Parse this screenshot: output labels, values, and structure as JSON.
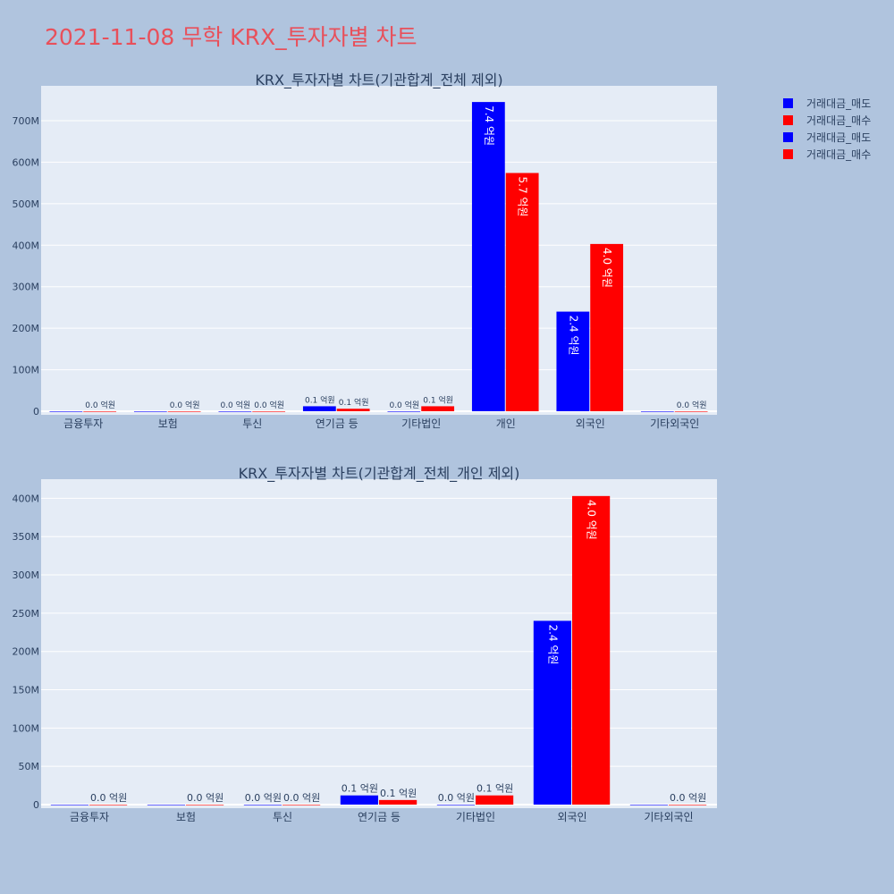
{
  "page": {
    "title": "2021-11-08 무학 KRX_투자자별 차트"
  },
  "legend": [
    {
      "name": "거래대금_매도",
      "color": "#0000ff"
    },
    {
      "name": "거래대금_매수",
      "color": "#ff0000"
    },
    {
      "name": "거래대금_매도",
      "color": "#0000ff"
    },
    {
      "name": "거래대금_매수",
      "color": "#ff0000"
    }
  ],
  "chart_data": [
    {
      "type": "bar",
      "title": "KRX_투자자별 차트(기관합계_전체 제외)",
      "categories": [
        "금융투자",
        "보험",
        "투신",
        "연기금 등",
        "기타법인",
        "개인",
        "외국인",
        "기타외국인"
      ],
      "series": [
        {
          "name": "거래대금_매도",
          "color": "#0000ff",
          "values": [
            0,
            0,
            0,
            12000000,
            0,
            745000000,
            240000000,
            0
          ],
          "labels": [
            "",
            "",
            "0.0 억원",
            "0.1 억원",
            "0.0 억원",
            "7.4 억원",
            "2.4 억원",
            ""
          ]
        },
        {
          "name": "거래대금_매수",
          "color": "#ff0000",
          "values": [
            0,
            0,
            0,
            6000000,
            12000000,
            574000000,
            403000000,
            0
          ],
          "labels": [
            "0.0 억원",
            "0.0 억원",
            "0.0 억원",
            "0.1 억원",
            "0.1 억원",
            "5.7 억원",
            "4.0 억원",
            "0.0 억원"
          ]
        }
      ],
      "yticks": [
        0,
        100000000,
        200000000,
        300000000,
        400000000,
        500000000,
        600000000,
        700000000
      ],
      "ytick_labels": [
        "0",
        "100M",
        "200M",
        "300M",
        "400M",
        "500M",
        "600M",
        "700M"
      ],
      "ylim": [
        0,
        784000000
      ],
      "grid": true
    },
    {
      "type": "bar",
      "title": "KRX_투자자별 차트(기관합계_전체_개인 제외)",
      "categories": [
        "금융투자",
        "보험",
        "투신",
        "연기금 등",
        "기타법인",
        "외국인",
        "기타외국인"
      ],
      "series": [
        {
          "name": "거래대금_매도",
          "color": "#0000ff",
          "values": [
            0,
            0,
            0,
            12000000,
            0,
            240000000,
            0
          ],
          "labels": [
            "",
            "",
            "0.0 억원",
            "0.1 억원",
            "0.0 억원",
            "2.4 억원",
            ""
          ]
        },
        {
          "name": "거래대금_매수",
          "color": "#ff0000",
          "values": [
            0,
            0,
            0,
            6000000,
            12000000,
            403000000,
            0
          ],
          "labels": [
            "0.0 억원",
            "0.0 억원",
            "0.0 억원",
            "0.1 억원",
            "0.1 억원",
            "4.0 억원",
            "0.0 억원"
          ]
        }
      ],
      "yticks": [
        0,
        50000000,
        100000000,
        150000000,
        200000000,
        250000000,
        300000000,
        350000000,
        400000000
      ],
      "ytick_labels": [
        "0",
        "50M",
        "100M",
        "150M",
        "200M",
        "250M",
        "300M",
        "350M",
        "400M"
      ],
      "ylim": [
        0,
        425000000
      ],
      "grid": true
    }
  ]
}
